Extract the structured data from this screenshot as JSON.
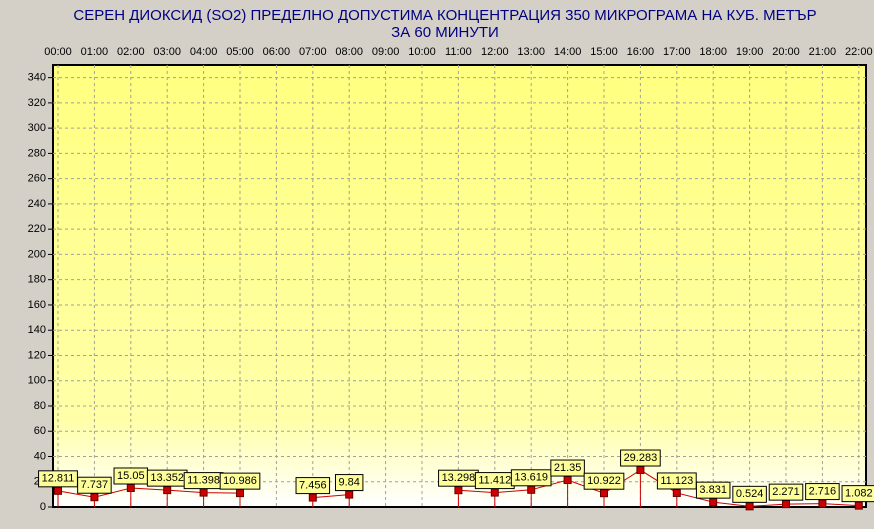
{
  "chart_data": {
    "type": "line",
    "title": [
      "СЕРЕН ДИОКСИД  (SO2)  ПРЕДЕЛНО ДОПУСТИМА КОНЦЕНТРАЦИЯ 350 МИКРОГРАМА  НА КУБ. МЕТЪР",
      "ЗА 60 МИНУТИ"
    ],
    "categories": [
      "00:00",
      "01:00",
      "02:00",
      "03:00",
      "04:00",
      "05:00",
      "06:00",
      "07:00",
      "08:00",
      "09:00",
      "10:00",
      "11:00",
      "12:00",
      "13:00",
      "14:00",
      "15:00",
      "16:00",
      "17:00",
      "18:00",
      "19:00",
      "20:00",
      "21:00",
      "22:00"
    ],
    "values": [
      12.811,
      7.737,
      15.05,
      13.352,
      11.398,
      10.986,
      null,
      7.456,
      9.84,
      null,
      null,
      13.298,
      11.412,
      13.619,
      21.35,
      10.922,
      29.283,
      11.123,
      3.831,
      0.524,
      2.271,
      2.716,
      1.082
    ],
    "color": "#cc0000",
    "ylim": [
      0,
      350
    ],
    "yticks": [
      0,
      20,
      40,
      60,
      80,
      100,
      120,
      140,
      160,
      180,
      200,
      220,
      240,
      260,
      280,
      300,
      320,
      340
    ],
    "grid": true
  }
}
